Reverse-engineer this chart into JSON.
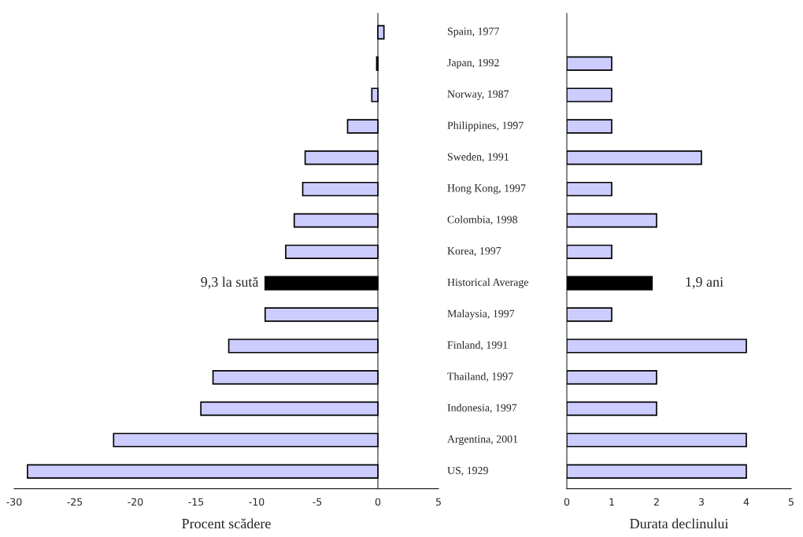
{
  "chart_data": [
    {
      "type": "bar",
      "orientation": "horizontal",
      "categories": [
        "Spain, 1977",
        "Japan, 1992",
        "Norway, 1987",
        "Philippines, 1997",
        "Sweden, 1991",
        "Hong Kong, 1997",
        "Colombia, 1998",
        "Korea, 1997",
        "Historical Average",
        "Malaysia, 1997",
        "Finland, 1991",
        "Thailand, 1997",
        "Indonesia, 1997",
        "Argentina, 2001",
        "US, 1929"
      ],
      "values": [
        0.5,
        -0.1,
        -0.5,
        -2.5,
        -6.0,
        -6.2,
        -6.9,
        -7.6,
        -9.3,
        -9.3,
        -12.3,
        -13.6,
        -14.6,
        -21.8,
        -28.9
      ],
      "colors": [
        "#ccccff",
        "#000000",
        "#ccccff",
        "#ccccff",
        "#ccccff",
        "#ccccff",
        "#ccccff",
        "#ccccff",
        "#000000",
        "#ccccff",
        "#ccccff",
        "#ccccff",
        "#ccccff",
        "#ccccff",
        "#ccccff"
      ],
      "xlim": [
        -30,
        5
      ],
      "xticks": [
        -30,
        -25,
        -20,
        -15,
        -10,
        -5,
        0,
        5
      ],
      "xlabel": "Procent scădere",
      "annotations": [
        {
          "text": "9,3 la sută",
          "x": -9.3,
          "y": "Historical Average"
        }
      ],
      "tick_labels": "x"
    },
    {
      "type": "bar",
      "orientation": "horizontal",
      "categories": [
        "Spain, 1977",
        "Japan, 1992",
        "Norway, 1987",
        "Philippines, 1997",
        "Sweden, 1991",
        "Hong Kong, 1997",
        "Colombia, 1998",
        "Korea, 1997",
        "Historical Average",
        "Malaysia, 1997",
        "Finland, 1991",
        "Thailand, 1997",
        "Indonesia, 1997",
        "Argentina, 2001",
        "US, 1929"
      ],
      "values": [
        null,
        1,
        1,
        1,
        3,
        1,
        2,
        1,
        1.9,
        1,
        4,
        2,
        2,
        4,
        4
      ],
      "colors": [
        "#ccccff",
        "#ccccff",
        "#ccccff",
        "#ccccff",
        "#ccccff",
        "#ccccff",
        "#ccccff",
        "#ccccff",
        "#000000",
        "#ccccff",
        "#ccccff",
        "#ccccff",
        "#ccccff",
        "#ccccff",
        "#ccccff"
      ],
      "xlim": [
        0,
        5
      ],
      "xticks": [
        0,
        1,
        2,
        3,
        4,
        5
      ],
      "xlabel": "Durata declinului",
      "annotations": [
        {
          "text": "1,9 ani",
          "x": 1.9,
          "y": "Historical Average"
        }
      ]
    }
  ]
}
